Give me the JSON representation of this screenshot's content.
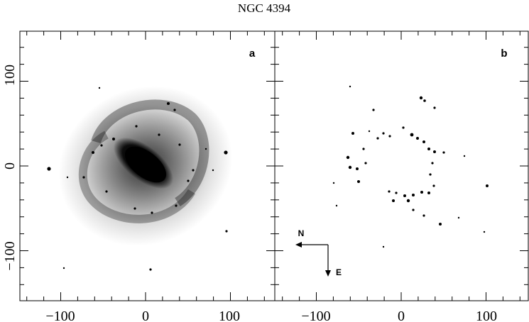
{
  "figure": {
    "title": "NGC 4394",
    "panels": [
      {
        "letter": "a",
        "description_icon": "galaxy-image"
      },
      {
        "letter": "b",
        "description_icon": "ring-hii-regions-image"
      }
    ],
    "x_ticks": [
      "−100",
      "0",
      "100"
    ],
    "y_ticks": [
      "100",
      "0",
      "−100"
    ],
    "x_tick_values": [
      -100,
      0,
      100
    ],
    "y_tick_values": [
      100,
      0,
      -100
    ],
    "x_range": [
      -140,
      150
    ],
    "y_range": [
      -150,
      150
    ],
    "compass": {
      "north": "N",
      "east": "E"
    },
    "colors": {
      "ink": "#000000",
      "background": "#ffffff"
    }
  }
}
